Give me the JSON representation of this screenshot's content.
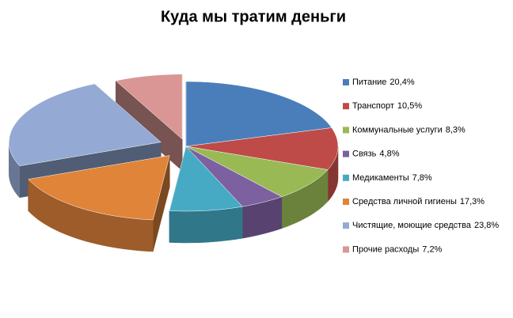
{
  "chart_data": {
    "type": "pie",
    "title": "Куда мы тратим деньги",
    "categories": [
      "Питание",
      "Транспорт",
      "Коммунальные услуги",
      "Связь",
      "Медикаменты",
      "Средства личной гигиены",
      "Чистящие, моющие средства",
      "Прочие расходы"
    ],
    "values": [
      20.4,
      10.5,
      8.3,
      4.8,
      7.8,
      17.3,
      23.8,
      7.2
    ],
    "value_labels": [
      "20,4%",
      "10,5%",
      "8,3%",
      "4,8%",
      "7,8%",
      "17,3%",
      "23,8%",
      "7,2%"
    ],
    "colors": [
      "#4a7ebb",
      "#be4b48",
      "#98b954",
      "#7d60a0",
      "#46aac5",
      "#e0843a",
      "#94a9d3",
      "#d99694"
    ],
    "legend": "right"
  }
}
